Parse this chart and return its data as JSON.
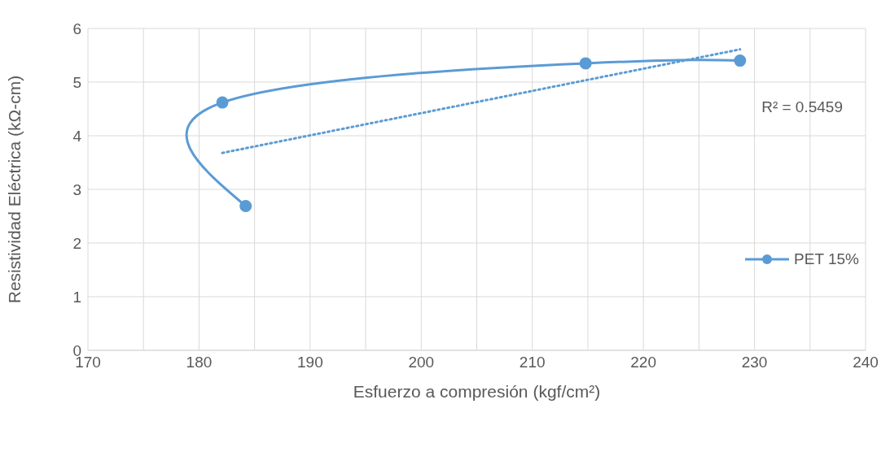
{
  "chart_data": {
    "type": "line",
    "xlabel": "Esfuerzo a compresión (kgf/cm²)",
    "ylabel": "Resistividad Eléctrica (kΩ-cm)",
    "series": [
      {
        "name": "PET 15%",
        "color": "#5b9bd5",
        "x": [
          184.2,
          182.1,
          214.8,
          228.7
        ],
        "values": [
          2.69,
          4.62,
          5.35,
          5.4
        ],
        "marker": "circle",
        "line_style": "solid"
      },
      {
        "type": "line",
        "color": "#5b9bd5",
        "x": [
          182.1,
          228.7
        ],
        "values": [
          3.68,
          5.61
        ],
        "marker": "none",
        "line_style": "dotted"
      }
    ],
    "annotations": [
      "R² = 0.5459"
    ],
    "xlim": [
      170,
      240
    ],
    "xticks": [
      170,
      {
        "value": 175,
        "label": null
      },
      180,
      {
        "value": 185,
        "label": null
      },
      190,
      {
        "value": 195,
        "label": null
      },
      200,
      {
        "value": 205,
        "label": null
      },
      210,
      {
        "value": 215,
        "label": null
      },
      220,
      {
        "value": 225,
        "label": null
      },
      230,
      {
        "value": 235,
        "label": null
      },
      240
    ],
    "ylim": [
      0,
      6
    ],
    "yticks": [
      0,
      1,
      2,
      3,
      4,
      5,
      6
    ],
    "grid": true,
    "legend": "right"
  }
}
